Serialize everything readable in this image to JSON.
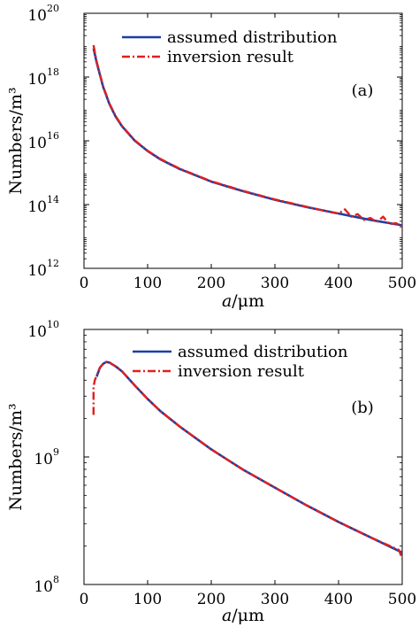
{
  "chart_data": [
    {
      "type": "line",
      "panel_label": "(a)",
      "xlabel": "a/μm",
      "ylabel": "Numbers/m³",
      "xlim": [
        0,
        500
      ],
      "ylim_log10": [
        12,
        20
      ],
      "yscale": "log",
      "xticks": [
        "0",
        "100",
        "200",
        "300",
        "400",
        "500"
      ],
      "yticks": [
        {
          "base": "10",
          "exp": "12"
        },
        {
          "base": "10",
          "exp": "14"
        },
        {
          "base": "10",
          "exp": "16"
        },
        {
          "base": "10",
          "exp": "18"
        },
        {
          "base": "10",
          "exp": "20"
        }
      ],
      "legend_position": "top-right",
      "series": [
        {
          "name": "assumed distribution",
          "color": "#1a3fa6",
          "style": "solid",
          "x": [
            15,
            20,
            30,
            40,
            50,
            60,
            80,
            100,
            120,
            150,
            200,
            250,
            300,
            350,
            400,
            450,
            500
          ],
          "y_log10": [
            18.9,
            18.45,
            17.7,
            17.15,
            16.75,
            16.45,
            16.0,
            15.68,
            15.42,
            15.12,
            14.72,
            14.42,
            14.15,
            13.92,
            13.72,
            13.52,
            13.35
          ]
        },
        {
          "name": "inversion result",
          "color": "#e02020",
          "style": "dashdot",
          "x": [
            15,
            20,
            30,
            40,
            50,
            60,
            80,
            100,
            120,
            150,
            200,
            250,
            300,
            350,
            390,
            400,
            410,
            420,
            430,
            440,
            450,
            460,
            470,
            480,
            490,
            500
          ],
          "y_log10": [
            19.0,
            18.48,
            17.72,
            17.17,
            16.77,
            16.46,
            16.01,
            15.69,
            15.43,
            15.13,
            14.73,
            14.43,
            14.16,
            13.93,
            13.75,
            13.72,
            13.85,
            13.62,
            13.7,
            13.52,
            13.58,
            13.45,
            13.62,
            13.38,
            13.42,
            13.32
          ]
        }
      ]
    },
    {
      "type": "line",
      "panel_label": "(b)",
      "xlabel": "a/μm",
      "ylabel": "Numbers/m³",
      "xlim": [
        0,
        500
      ],
      "ylim_log10": [
        8,
        10
      ],
      "yscale": "log",
      "xticks": [
        "0",
        "100",
        "200",
        "300",
        "400",
        "500"
      ],
      "yticks": [
        {
          "base": "10",
          "exp": "8"
        },
        {
          "base": "10",
          "exp": "9"
        },
        {
          "base": "10",
          "exp": "10"
        }
      ],
      "legend_position": "top-right",
      "series": [
        {
          "name": "assumed distribution",
          "color": "#1a3fa6",
          "style": "solid",
          "x": [
            20,
            25,
            30,
            35,
            40,
            50,
            60,
            80,
            100,
            120,
            150,
            200,
            250,
            300,
            350,
            400,
            450,
            500
          ],
          "y_log10": [
            9.63,
            9.7,
            9.73,
            9.745,
            9.74,
            9.71,
            9.67,
            9.56,
            9.455,
            9.36,
            9.24,
            9.06,
            8.9,
            8.76,
            8.62,
            8.49,
            8.37,
            8.25
          ]
        },
        {
          "name": "inversion result",
          "color": "#e02020",
          "style": "dashdot",
          "x": [
            15,
            15,
            17,
            20,
            25,
            30,
            35,
            40,
            50,
            60,
            80,
            100,
            120,
            150,
            200,
            250,
            300,
            350,
            400,
            450,
            495,
            500
          ],
          "y_log10": [
            9.33,
            9.55,
            9.6,
            9.64,
            9.7,
            9.73,
            9.745,
            9.74,
            9.71,
            9.67,
            9.56,
            9.455,
            9.36,
            9.24,
            9.06,
            8.9,
            8.76,
            8.62,
            8.49,
            8.37,
            8.27,
            8.2
          ]
        }
      ]
    }
  ]
}
